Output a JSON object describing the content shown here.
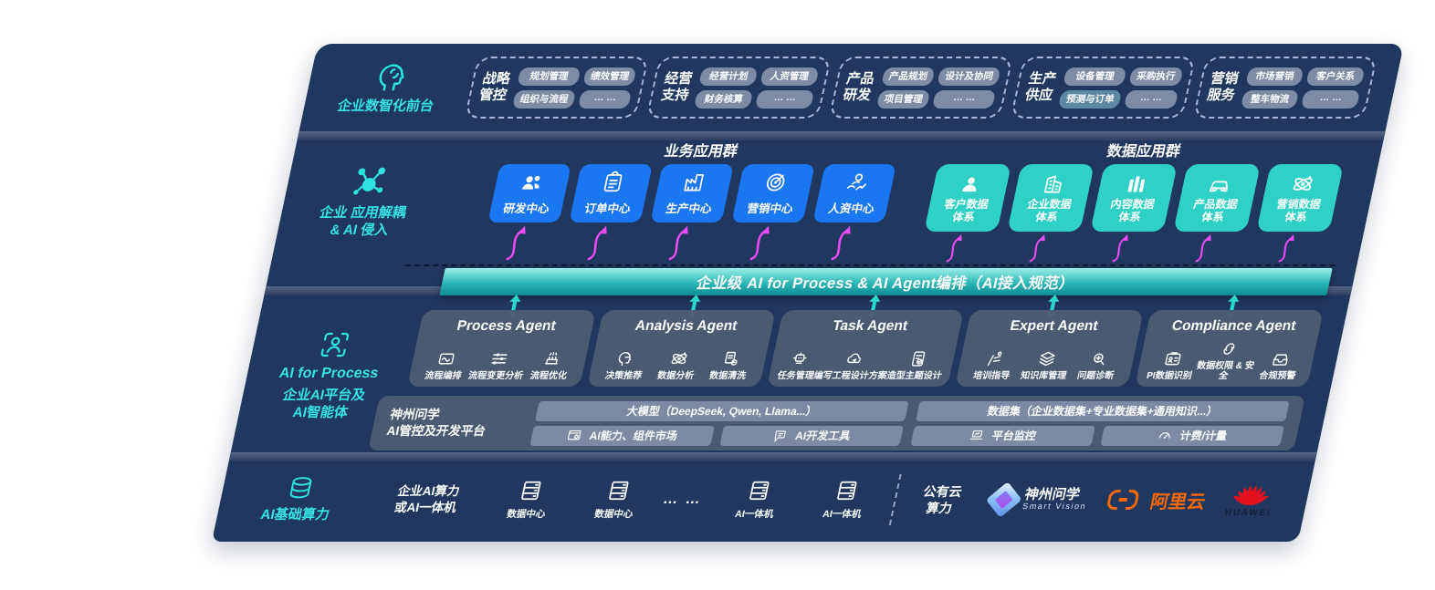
{
  "colors": {
    "plate": "#20375f",
    "blue_box": "#1b76f2",
    "teal_box": "#2fd0c6",
    "band_top": "#9ceee9",
    "band_bottom": "#0c8c93",
    "magenta_arrow": "#ea4cf2",
    "teal_accent": "#2de2df",
    "agent_card": "#4e5b74",
    "pill": "#7e8aa6",
    "pill_highlight": "#5d89a4",
    "aliyun_orange": "#ff6a00",
    "huawei_red": "#e3111f"
  },
  "front": {
    "label": "企业数智化前台",
    "groups": [
      {
        "title1": "战略",
        "title2": "管控",
        "items": [
          "规划管理",
          "绩效管理",
          "组织与流程",
          "… …"
        ]
      },
      {
        "title1": "经营",
        "title2": "支持",
        "items": [
          "经营计划",
          "人资管理",
          "财务核算",
          "… …"
        ]
      },
      {
        "title1": "产品",
        "title2": "研发",
        "items": [
          "产品规划",
          "设计及协同",
          "项目管理",
          "… …"
        ]
      },
      {
        "title1": "生产",
        "title2": "供应",
        "items": [
          "设备管理",
          "采购执行",
          "预测与订单",
          "… …"
        ]
      },
      {
        "title1": "营销",
        "title2": "服务",
        "items": [
          "市场营销",
          "客户关系",
          "整车物流",
          "… …"
        ]
      }
    ]
  },
  "apps": {
    "label1": "企业 应用解耦",
    "label2": "& AI 侵入",
    "business_title": "业务应用群",
    "business_items": [
      {
        "label": "研发中心"
      },
      {
        "label": "订单中心"
      },
      {
        "label": "生产中心"
      },
      {
        "label": "营销中心"
      },
      {
        "label": "人资中心"
      }
    ],
    "data_title": "数据应用群",
    "data_items": [
      {
        "l1": "客户数据",
        "l2": "体系"
      },
      {
        "l1": "企业数据",
        "l2": "体系"
      },
      {
        "l1": "内容数据",
        "l2": "体系"
      },
      {
        "l1": "产品数据",
        "l2": "体系"
      },
      {
        "l1": "营销数据",
        "l2": "体系"
      }
    ]
  },
  "band_text": "企业级 AI for Process & AI Agent编排（AI接入规范）",
  "ai_layer": {
    "label_en": "AI for Process",
    "label1": "企业AI平台及",
    "label2": "AI智能体",
    "agents": [
      {
        "title": "Process Agent",
        "items": [
          "流程编排",
          "流程变更分析",
          "流程优化"
        ]
      },
      {
        "title": "Analysis Agent",
        "items": [
          "决策推荐",
          "数据分析",
          "数据清洗"
        ]
      },
      {
        "title": "Task Agent",
        "items": [
          "任务管理",
          "编写工程设计方案",
          "造型主题设计"
        ]
      },
      {
        "title": "Expert Agent",
        "items": [
          "培训指导",
          "知识库管理",
          "问题诊断"
        ]
      },
      {
        "title": "Compliance Agent",
        "items": [
          "PI数据识别",
          "数据权限 & 安全",
          "合规预警"
        ]
      }
    ],
    "platform": {
      "title1": "神州问学",
      "title2": "AI管控及开发平台",
      "model_bar": "大模型（DeepSeek, Qwen, Llama...）",
      "left_cells": [
        "AI能力、组件市场",
        "AI开发工具"
      ],
      "dataset_bar": "数据集（企业数据集+专业数据集+通用知识...）",
      "right_cells": [
        "平台监控",
        "计费/计量"
      ]
    }
  },
  "compute": {
    "label": "AI基础算力",
    "cluster1": "企业AI算力",
    "cluster2": "或AI一体机",
    "nodes": [
      {
        "label": "数据中心"
      },
      {
        "label": "数据中心"
      }
    ],
    "ellipsis": "… …",
    "nodes2": [
      {
        "label": "AI一体机"
      },
      {
        "label": "AI一体机"
      }
    ],
    "cloud1": "公有云",
    "cloud2": "算力",
    "logos": {
      "sv_name": "神州问学",
      "sv_sub": "Smart Vision",
      "aliyun": "阿里云",
      "huawei": "HUAWEI"
    }
  }
}
